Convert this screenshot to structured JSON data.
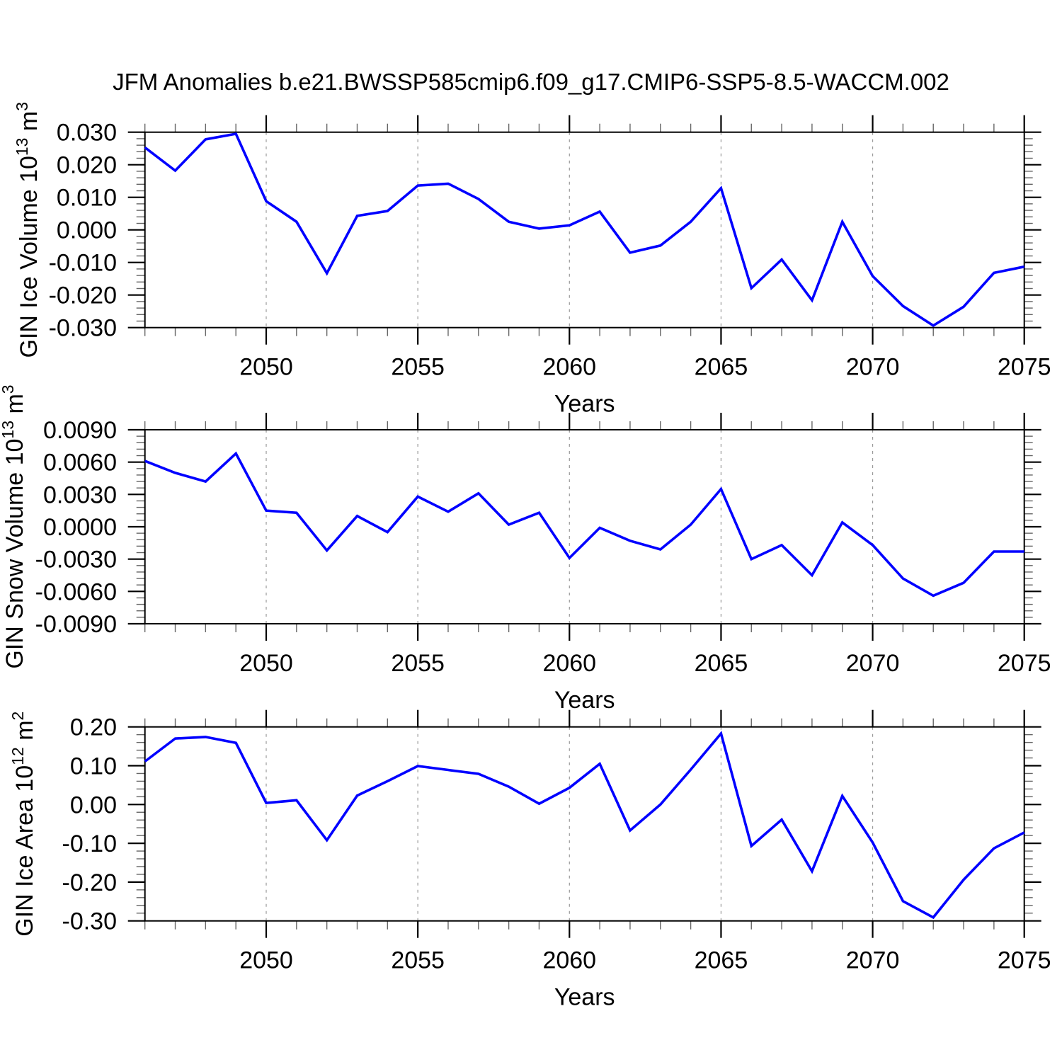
{
  "title": "JFM Anomalies b.e21.BWSSP585cmip6.f09_g17.CMIP6-SSP5-8.5-WACCM.002",
  "style": {
    "line_color": "#0000FF",
    "axis_color": "#000000",
    "grid_color": "#999999",
    "minor_tick_color": "#666666"
  },
  "chart_data": [
    {
      "type": "line",
      "name": "gin-ice-volume",
      "ylabel": "GIN Ice Volume 10¹³ m³",
      "ylabel_parts": {
        "base": "GIN Ice Volume 10",
        "sup": "13",
        "mid": " m",
        "sup2": "3"
      },
      "xlabel": "Years",
      "legend": "none",
      "grid": "vertical-dashed-at-major-xticks",
      "xlim": [
        2046,
        2075
      ],
      "ylim": [
        -0.03,
        0.03
      ],
      "xticks": [
        2050,
        2055,
        2060,
        2065,
        2070,
        2075
      ],
      "xminor_step": 1,
      "yminor_step": 0.002,
      "ytick_values": [
        0.03,
        0.02,
        0.01,
        0.0,
        -0.01,
        -0.02,
        -0.03
      ],
      "ytick_labels": [
        "0.030",
        "0.020",
        "0.010",
        "0.000",
        "-0.010",
        "-0.020",
        "-0.030"
      ],
      "x": [
        2046,
        2047,
        2048,
        2049,
        2050,
        2051,
        2052,
        2053,
        2054,
        2055,
        2056,
        2057,
        2058,
        2059,
        2060,
        2061,
        2062,
        2063,
        2064,
        2065,
        2066,
        2067,
        2068,
        2069,
        2070,
        2071,
        2072,
        2073,
        2074,
        2075
      ],
      "values": [
        0.0253,
        0.0182,
        0.0278,
        0.0295,
        0.0088,
        0.0025,
        -0.0133,
        0.0043,
        0.0058,
        0.0136,
        0.0142,
        0.0095,
        0.0025,
        0.0004,
        0.0014,
        0.0056,
        -0.007,
        -0.0048,
        0.0025,
        0.0128,
        -0.0179,
        -0.0091,
        -0.0216,
        0.0025,
        -0.0142,
        -0.0234,
        -0.0294,
        -0.0236,
        -0.0132,
        -0.0113
      ]
    },
    {
      "type": "line",
      "name": "gin-snow-volume",
      "ylabel": "GIN Snow Volume 10¹³ m³",
      "ylabel_parts": {
        "base": "GIN Snow Volume 10",
        "sup": "13",
        "mid": " m",
        "sup2": "3"
      },
      "xlabel": "Years",
      "legend": "none",
      "grid": "vertical-dashed-at-major-xticks",
      "xlim": [
        2046,
        2075
      ],
      "ylim": [
        -0.009,
        0.009
      ],
      "xticks": [
        2050,
        2055,
        2060,
        2065,
        2070,
        2075
      ],
      "xminor_step": 1,
      "yminor_step": 0.0006,
      "ytick_values": [
        0.009,
        0.006,
        0.003,
        0.0,
        -0.003,
        -0.006,
        -0.009
      ],
      "ytick_labels": [
        "0.0090",
        "0.0060",
        "0.0030",
        "0.0000",
        "-0.0030",
        "-0.0060",
        "-0.0090"
      ],
      "x": [
        2046,
        2047,
        2048,
        2049,
        2050,
        2051,
        2052,
        2053,
        2054,
        2055,
        2056,
        2057,
        2058,
        2059,
        2060,
        2061,
        2062,
        2063,
        2064,
        2065,
        2066,
        2067,
        2068,
        2069,
        2070,
        2071,
        2072,
        2073,
        2074,
        2075
      ],
      "values": [
        0.0061,
        0.005,
        0.0042,
        0.0068,
        0.0015,
        0.0013,
        -0.0022,
        0.001,
        -0.0005,
        0.0028,
        0.0014,
        0.0031,
        0.0002,
        0.0013,
        -0.0029,
        -0.0001,
        -0.0013,
        -0.0021,
        0.0002,
        0.0035,
        -0.003,
        -0.0017,
        -0.0045,
        0.0004,
        -0.0017,
        -0.0048,
        -0.0064,
        -0.0052,
        -0.0023,
        -0.0023
      ]
    },
    {
      "type": "line",
      "name": "gin-ice-area",
      "ylabel": "GIN Ice Area 10¹² m²",
      "ylabel_parts": {
        "base": "GIN Ice Area 10",
        "sup": "12",
        "mid": " m",
        "sup2": "2"
      },
      "xlabel": "Years",
      "legend": "none",
      "grid": "vertical-dashed-at-major-xticks",
      "xlim": [
        2046,
        2075
      ],
      "ylim": [
        -0.3,
        0.2
      ],
      "xticks": [
        2050,
        2055,
        2060,
        2065,
        2070,
        2075
      ],
      "xminor_step": 1,
      "yminor_step": 0.02,
      "ytick_values": [
        0.2,
        0.1,
        0.0,
        -0.1,
        -0.2,
        -0.3
      ],
      "ytick_labels": [
        "0.20",
        "0.10",
        "0.00",
        "-0.10",
        "-0.20",
        "-0.30"
      ],
      "x": [
        2046,
        2047,
        2048,
        2049,
        2050,
        2051,
        2052,
        2053,
        2054,
        2055,
        2056,
        2057,
        2058,
        2059,
        2060,
        2061,
        2062,
        2063,
        2064,
        2065,
        2066,
        2067,
        2068,
        2069,
        2070,
        2071,
        2072,
        2073,
        2074,
        2075
      ],
      "values": [
        0.111,
        0.17,
        0.174,
        0.159,
        0.004,
        0.011,
        -0.092,
        0.023,
        0.06,
        0.099,
        0.089,
        0.079,
        0.046,
        0.002,
        0.043,
        0.105,
        -0.067,
        0.0,
        0.09,
        0.183,
        -0.107,
        -0.039,
        -0.172,
        0.022,
        -0.098,
        -0.249,
        -0.291,
        -0.194,
        -0.113,
        -0.072
      ]
    }
  ]
}
